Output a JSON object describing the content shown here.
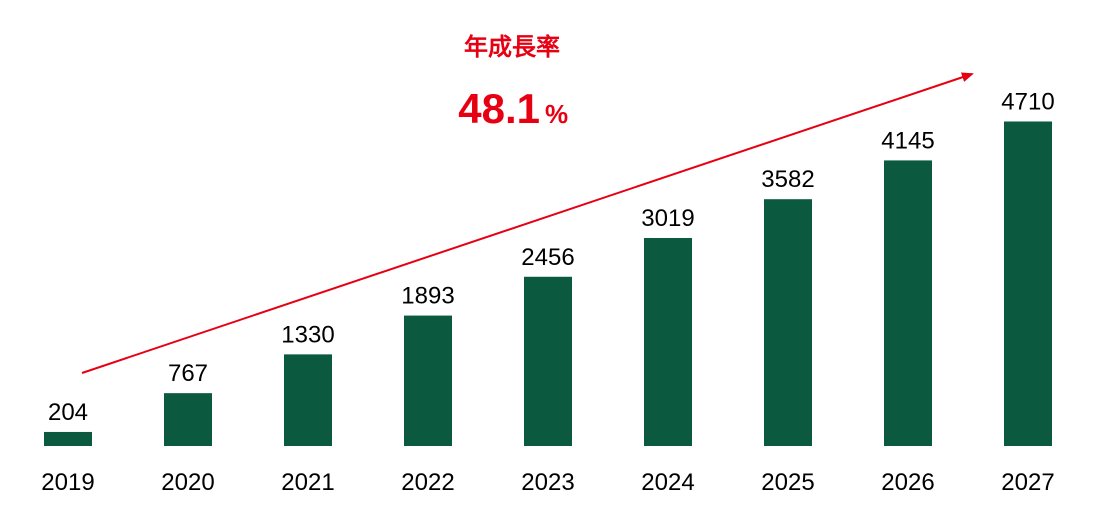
{
  "annotation": {
    "label": "年成長率",
    "value": "48.1",
    "unit": "%"
  },
  "colors": {
    "bar": "#0b5a3f",
    "arrow": "#e60012",
    "text": "#000000"
  },
  "chart_data": {
    "type": "bar",
    "title": "",
    "xlabel": "",
    "ylabel": "",
    "categories": [
      "2019",
      "2020",
      "2021",
      "2022",
      "2023",
      "2024",
      "2025",
      "2026",
      "2027"
    ],
    "values": [
      204,
      767,
      1330,
      1893,
      2456,
      3019,
      3582,
      4145,
      4710
    ],
    "ylim": [
      0,
      5000
    ],
    "grid": false,
    "legend": "none",
    "annotations": [
      "年成長率 48.1%"
    ]
  }
}
